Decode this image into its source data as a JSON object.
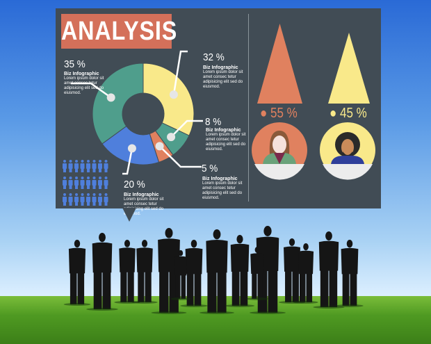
{
  "infographic": {
    "title": "ANALYSIS",
    "donut": {
      "segments": [
        {
          "label": "32 %",
          "value": 32,
          "color": "#f9e98a",
          "caption_title": "Biz Infographic",
          "caption_text": "Lorem ipsum dolor sit amet consec tetur adipisicing elit sed do eiusmod."
        },
        {
          "label": "8 %",
          "value": 8,
          "color": "#4f9e8c",
          "caption_title": "Biz Infographic",
          "caption_text": "Lorem ipsum dolor sit amet consec tetur adipisicing elit sed do eiusmod."
        },
        {
          "label": "5 %",
          "value": 5,
          "color": "#e0815f",
          "caption_title": "Biz Infographic",
          "caption_text": "Lorem ipsum dolor sit amet consec tetur adipisicing elit sed do eiusmod."
        },
        {
          "label": "20 %",
          "value": 20,
          "color": "#4f7fdc",
          "caption_title": "Biz Infographic",
          "caption_text": "Lorem ipsum dolor sit amet consec tetur adipisicing elit sed do eiusmod."
        },
        {
          "label": "35 %",
          "value": 35,
          "color": "#4f9e8c",
          "caption_title": "Biz Infographic",
          "caption_text": "Lorem ipsum dolor sit amet consec tetur adipisicing elit sed do eiusmod."
        }
      ]
    },
    "people_icons": {
      "rows": 3,
      "per_row": 8,
      "color": "#4f7fdc",
      "icon": "person-icon"
    },
    "comparison": [
      {
        "label": "55 %",
        "value": 55,
        "color": "#e0815f",
        "avatar": "woman-avatar-icon"
      },
      {
        "label": "45 %",
        "value": 45,
        "color": "#f9e98a",
        "avatar": "man-avatar-icon"
      }
    ]
  },
  "scene": {
    "people_count": 15,
    "sky_color": "#2a6ad6",
    "grass_color": "#5a9e26"
  }
}
